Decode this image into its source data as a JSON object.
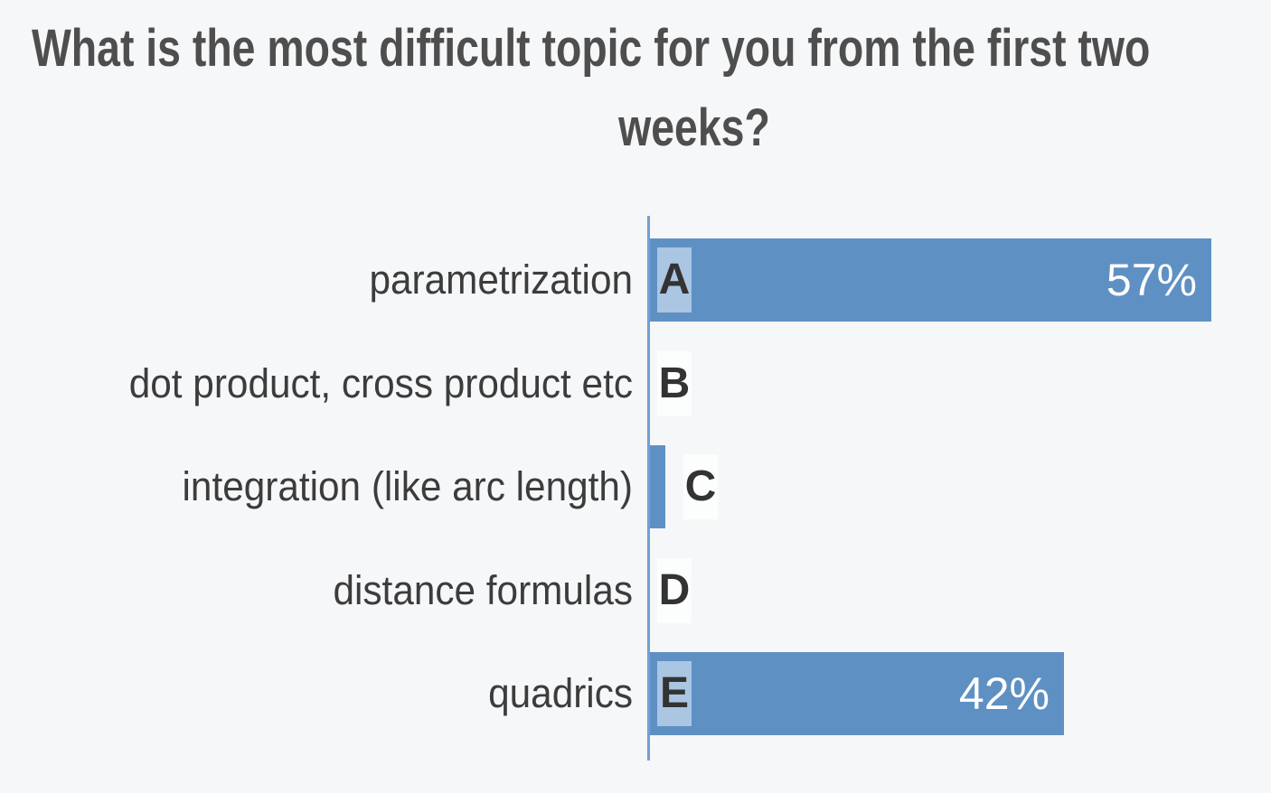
{
  "background_color": "#f6f7f9",
  "title": {
    "line1": "What is the most difficult topic for you from the first two",
    "line2": "weeks?",
    "color": "#4e4e4e",
    "note": "first line is clipped at the right edge of the viewport after the word 'first t'"
  },
  "chart_data": {
    "type": "bar",
    "orientation": "horizontal",
    "title": "What is the most difficult topic for you from the first two weeks?",
    "xlabel": "",
    "ylabel": "",
    "units": "percent",
    "xlim": [
      0,
      63
    ],
    "grid": false,
    "legend": false,
    "categories": [
      "parametrization",
      "dot product, cross product etc",
      "integration (like arc length)",
      "distance formulas",
      "quadrics"
    ],
    "option_letters": [
      "A",
      "B",
      "C",
      "D",
      "E"
    ],
    "values": [
      57,
      0,
      1.6,
      0,
      42
    ],
    "value_labels": [
      "57%",
      "",
      "",
      "",
      "42%"
    ],
    "value_label_note": "percent text shown only on bars wide enough (A and E); C bar tiny with no label; B and D are zero",
    "colors": {
      "bar": "#5f90c4",
      "letter_chip_on_bar": "#aac6e3",
      "letter_chip_off_bar": "rgba(255,255,255,0.7)",
      "axis_line": "#74a0d4",
      "value_label_text": "#ffffff",
      "category_label_text": "#3c3c3c",
      "option_letter_text": "#333333"
    }
  }
}
